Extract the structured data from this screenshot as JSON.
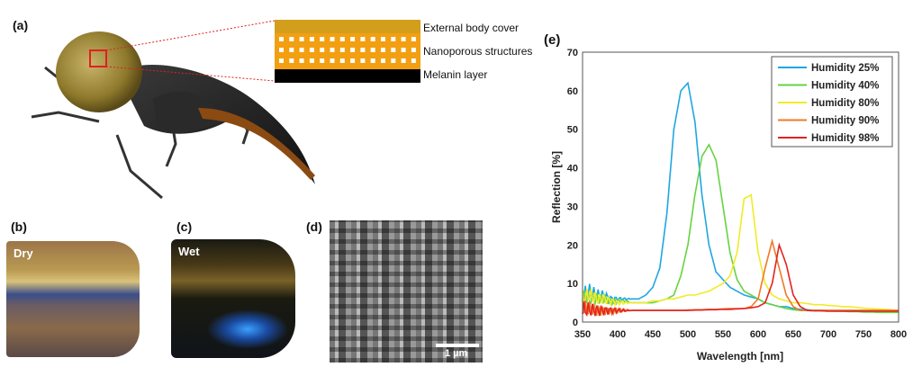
{
  "panels": {
    "a": {
      "label": "(a)",
      "layers": [
        "External body cover",
        "Nanoporous structures",
        "Melanin layer"
      ],
      "colors": {
        "cover": "#d39e1c",
        "nanoporous": "#f29f12",
        "melanin": "#000000",
        "highlight_box": "#e02020"
      }
    },
    "b": {
      "label": "(b)",
      "tag": "Dry"
    },
    "c": {
      "label": "(c)",
      "tag": "Wet"
    },
    "d": {
      "label": "(d)",
      "scale_bar": "1 µm"
    },
    "e": {
      "label": "(e)"
    }
  },
  "chart_data": {
    "type": "line",
    "xlabel": "Wavelength [nm]",
    "ylabel": "Reflection [%]",
    "xlim": [
      350,
      800
    ],
    "ylim": [
      0,
      70
    ],
    "xticks": [
      350,
      400,
      450,
      500,
      550,
      600,
      650,
      700,
      750,
      800
    ],
    "yticks": [
      0,
      10,
      20,
      30,
      40,
      50,
      60,
      70
    ],
    "grid": false,
    "legend": "top-right",
    "x": [
      350,
      360,
      370,
      380,
      390,
      400,
      410,
      420,
      430,
      440,
      450,
      460,
      470,
      480,
      490,
      500,
      510,
      520,
      530,
      540,
      550,
      560,
      570,
      580,
      590,
      600,
      610,
      620,
      630,
      640,
      650,
      660,
      670,
      680,
      690,
      700,
      710,
      720,
      730,
      740,
      750,
      760,
      770,
      780,
      790,
      800
    ],
    "series": [
      {
        "name": "Humidity 25%",
        "color": "#1ea7e0",
        "values": [
          7,
          8,
          7,
          7,
          6,
          6,
          6,
          6,
          6,
          7,
          9,
          14,
          28,
          50,
          60,
          62,
          52,
          33,
          20,
          13,
          11,
          9,
          8,
          7,
          6.5,
          6,
          5,
          4.5,
          4,
          4,
          3.5,
          3.3,
          3.2,
          3,
          3,
          3,
          3,
          3,
          3,
          3,
          3,
          3,
          3,
          3,
          3,
          3
        ]
      },
      {
        "name": "Humidity 40%",
        "color": "#66d340",
        "values": [
          6,
          6,
          6,
          6,
          5.5,
          5.5,
          5.5,
          5,
          5,
          5,
          5,
          5.5,
          6,
          7,
          12,
          20,
          33,
          43,
          46,
          42,
          30,
          18,
          11,
          8,
          7,
          6,
          5,
          4.5,
          4,
          3.5,
          3.2,
          3,
          3,
          3,
          3,
          2.9,
          2.8,
          2.8,
          2.7,
          2.7,
          2.6,
          2.6,
          2.5,
          2.5,
          2.5,
          2.5
        ]
      },
      {
        "name": "Humidity 80%",
        "color": "#f2ea2a",
        "values": [
          6,
          7,
          6,
          6,
          5.5,
          5,
          5,
          5,
          5,
          5,
          5.5,
          5.5,
          6,
          6,
          6.5,
          7,
          7,
          7.5,
          8,
          9,
          10,
          12,
          18,
          32,
          33,
          18,
          10,
          7,
          6,
          5.5,
          5,
          5,
          4.8,
          4.5,
          4.5,
          4.3,
          4.2,
          4,
          4,
          3.8,
          3.6,
          3.5,
          3.4,
          3.3,
          3.2,
          3
        ]
      },
      {
        "name": "Humidity 90%",
        "color": "#ef7a2a",
        "values": [
          3.5,
          3.5,
          3,
          3,
          3,
          3,
          3,
          3,
          3,
          3,
          3,
          3,
          3,
          3,
          3,
          3.1,
          3.2,
          3.2,
          3.3,
          3.3,
          3.4,
          3.5,
          3.5,
          3.5,
          4,
          6,
          14,
          21,
          14,
          7,
          4,
          3,
          3,
          3,
          3,
          3,
          3,
          3,
          3,
          3,
          3,
          3,
          3,
          3,
          3,
          3
        ]
      },
      {
        "name": "Humidity 98%",
        "color": "#e2231f",
        "values": [
          3.2,
          3.2,
          3,
          3,
          3,
          3,
          3,
          3,
          3,
          3,
          3,
          3,
          3,
          3,
          3,
          3,
          3.1,
          3.1,
          3.2,
          3.2,
          3.3,
          3.3,
          3.4,
          3.5,
          3.7,
          4,
          5,
          10,
          20,
          15,
          7,
          4,
          3,
          2.9,
          2.9,
          2.8,
          2.8,
          2.8,
          2.8,
          2.8,
          2.8,
          2.8,
          2.8,
          2.8,
          2.8,
          2.8
        ]
      }
    ]
  }
}
